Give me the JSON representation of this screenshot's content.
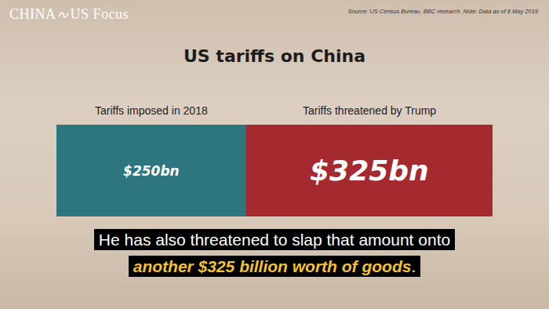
{
  "chart_data": {
    "type": "bar",
    "orientation": "horizontal",
    "stacked": true,
    "title": "US tariffs on China",
    "categories": [
      null
    ],
    "series": [
      {
        "name": "Tariffs imposed in 2018",
        "color": "#2d7680",
        "values": [
          250
        ],
        "value_labels": [
          "$250bn"
        ]
      },
      {
        "name": "Tariffs threatened by Trump",
        "color": "#a52a2f",
        "values": [
          325
        ],
        "value_labels": [
          "$325bn"
        ]
      }
    ],
    "xlim": [
      0,
      575
    ],
    "data_labels": true,
    "tick_labels": false,
    "grid": false
  },
  "logo": [
    "CHINA",
    "US Focus"
  ],
  "source": "Source: US Census Bureau, BBC research. Note: Data as of 8 May 2019",
  "caption": [
    [
      {
        "text": "He has also threatened to slap that amount onto"
      }
    ],
    [
      {
        "text": "another $325 billion worth of goods",
        "highlight": true
      },
      {
        "text": "."
      }
    ]
  ]
}
